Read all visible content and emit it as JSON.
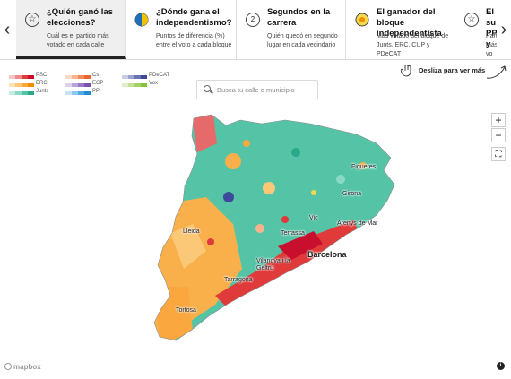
{
  "nav": {
    "prev_arrow": "‹",
    "next_arrow": "›"
  },
  "tabs": [
    {
      "icon": "star-icon",
      "title": "¿Quién ganó las elecciones?",
      "desc": "Cuál es el partido más votado en cada calle"
    },
    {
      "icon": "half-circle-icon",
      "title": "¿Dónde gana el independentismo?",
      "desc": "Puntos de diferencia (%) entre el voto a cada bloque"
    },
    {
      "icon": "number-icon",
      "icon_text": "2",
      "title": "Segundos en la carrera",
      "desc": "Quién quedó en segundo lugar en cada vecindario"
    },
    {
      "icon": "half-circle-icon",
      "title": "El ganador del bloque independentista",
      "desc": "Más votado del bloque de Junts, ERC, CUP y PDeCAT"
    },
    {
      "icon": "star-icon",
      "title": "El su PP y",
      "desc": "Partid más vo"
    }
  ],
  "legend": [
    {
      "label": "PSC",
      "colors": [
        "#f6c7c7",
        "#ef8a8a",
        "#e03a3a",
        "#c8102e"
      ]
    },
    {
      "label": "ERC",
      "colors": [
        "#fde2b8",
        "#fbc878",
        "#f9a73e",
        "#f28c00"
      ]
    },
    {
      "label": "Junts",
      "colors": [
        "#c2ece2",
        "#8ad9c6",
        "#4fc4a8",
        "#2aa88a"
      ]
    },
    {
      "label": "Cs",
      "colors": [
        "#fbd9c4",
        "#f7b48e",
        "#f28b5a",
        "#e8662e"
      ]
    },
    {
      "label": "ECP",
      "colors": [
        "#ddd0ea",
        "#bba3d6",
        "#9a78c2",
        "#7a52ad"
      ]
    },
    {
      "label": "PP",
      "colors": [
        "#c7e4f6",
        "#8fc8ec",
        "#55abe1",
        "#1e8dd4"
      ]
    },
    {
      "label": "PDeCAT",
      "colors": [
        "#c9cde4",
        "#9aa1cc",
        "#6a74b3",
        "#3d4a99"
      ]
    },
    {
      "label": "Vox",
      "colors": [
        "#e0efc6",
        "#c3e196",
        "#a4d266",
        "#84c238"
      ]
    }
  ],
  "search": {
    "placeholder": "Busca tu calle o municipio"
  },
  "swipe": {
    "label": "Desliza para ver más"
  },
  "map": {
    "zoom_in": "+",
    "zoom_out": "−",
    "fullscreen": "⛶",
    "attribution": "mapbox",
    "info": "i",
    "cities": [
      {
        "name": "Figueres",
        "big": false
      },
      {
        "name": "Girona",
        "big": false
      },
      {
        "name": "Lleida",
        "big": false
      },
      {
        "name": "Vic",
        "big": false
      },
      {
        "name": "Arenys de Mar",
        "big": false
      },
      {
        "name": "Terrassa",
        "big": false
      },
      {
        "name": "Barcelona",
        "big": true
      },
      {
        "name": "Vilanova i la Geltrú",
        "big": false
      },
      {
        "name": "Tarragona",
        "big": false
      },
      {
        "name": "Tortosa",
        "big": false
      }
    ]
  }
}
